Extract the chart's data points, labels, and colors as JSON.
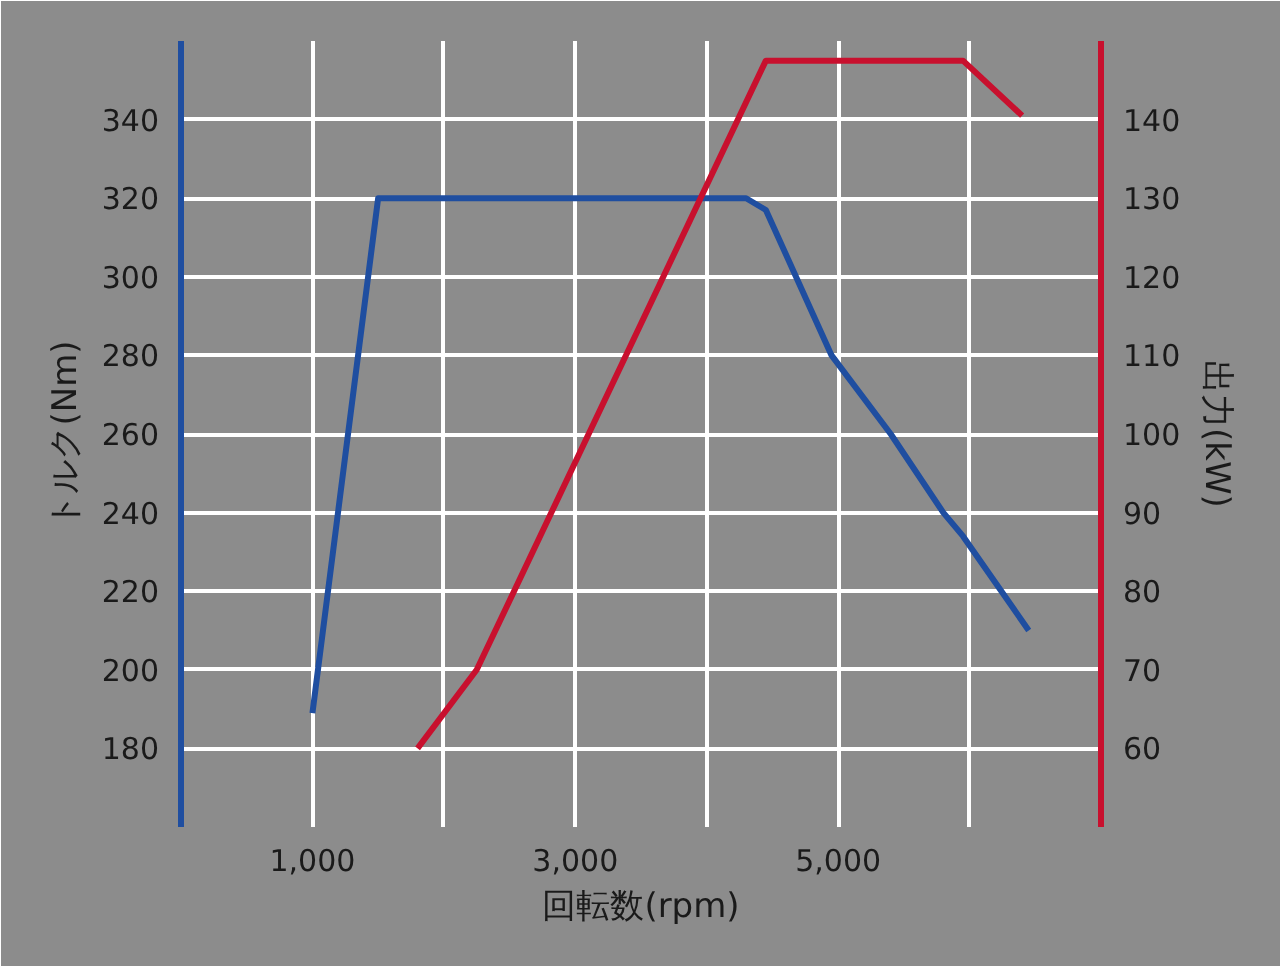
{
  "chart_data": {
    "type": "line",
    "xlabel": "回転数(rpm)",
    "ylabel": "トルク(Nm)",
    "y2label": "出力(kW)",
    "xlim": [
      0,
      7000
    ],
    "xticks": [
      {
        "value": 1000,
        "label": "1,000"
      },
      {
        "value": 2000,
        "label": null
      },
      {
        "value": 3000,
        "label": "3,000"
      },
      {
        "value": 4000,
        "label": null
      },
      {
        "value": 5000,
        "label": "5,000"
      },
      {
        "value": 6000,
        "label": null
      }
    ],
    "ylim": [
      160,
      360
    ],
    "yticks": [
      180,
      200,
      220,
      240,
      260,
      280,
      300,
      320,
      340,
      {
        "value": 360,
        "label": null
      }
    ],
    "y2lim": [
      50,
      150
    ],
    "y2ticks": [
      60,
      70,
      80,
      90,
      100,
      110,
      120,
      130,
      140
    ],
    "grid": true,
    "marker": "none",
    "line_style": "solid",
    "series": [
      {
        "color": "#1f4ea0",
        "x": [
          1000,
          1500,
          4300,
          4450,
          4950,
          5400,
          5800,
          5950,
          6450
        ],
        "values": [
          189,
          320,
          320,
          317,
          280,
          260,
          240,
          234,
          210
        ]
      },
      {
        "color": "#c8102e",
        "axis": "y2",
        "x": [
          1800,
          2250,
          4450,
          5950,
          6400
        ],
        "values": [
          60,
          70,
          147.5,
          147.5,
          140.5
        ]
      }
    ]
  }
}
